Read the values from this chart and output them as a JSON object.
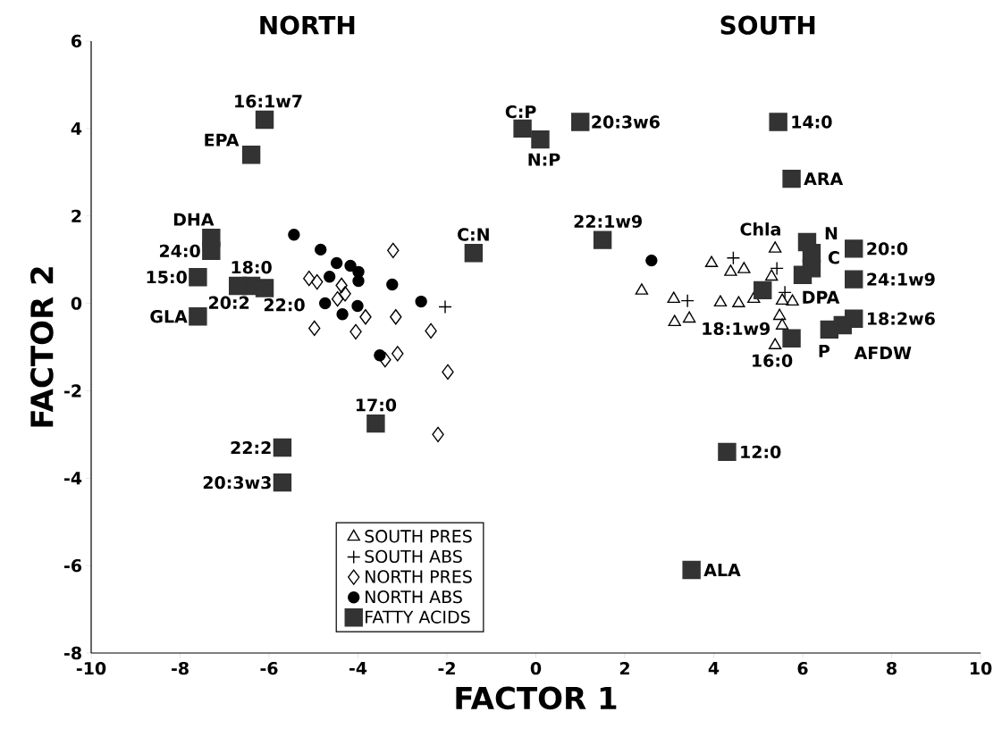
{
  "chart_data": {
    "type": "scatter",
    "xlabel": "FACTOR 1",
    "ylabel": "FACTOR 2",
    "xlim": [
      -10,
      10
    ],
    "ylim": [
      -8,
      6
    ],
    "xticks": [
      -10,
      -8,
      -6,
      -4,
      -2,
      0,
      2,
      4,
      6,
      8,
      10
    ],
    "yticks": [
      -8,
      -6,
      -4,
      -2,
      0,
      2,
      4,
      6
    ],
    "grid": false,
    "legend": "bottom",
    "series": [
      {
        "name": "SOUTH PRES",
        "color": "#000000",
        "marker": "triangle",
        "x": [
          2.38,
          3.1,
          3.12,
          3.45,
          3.95,
          4.38,
          4.68,
          4.15,
          4.56,
          4.9,
          5.38,
          5.3,
          5.54,
          5.77,
          5.48,
          5.54,
          5.38
        ],
        "values": [
          0.29,
          0.1,
          -0.43,
          -0.35,
          0.92,
          0.72,
          0.78,
          0.02,
          0.0,
          0.1,
          1.25,
          0.61,
          0.06,
          0.04,
          -0.29,
          -0.51,
          -0.96
        ]
      },
      {
        "name": "SOUTH ABS",
        "color": "#000000",
        "marker": "cross",
        "x": [
          -2.04,
          4.44,
          5.42,
          3.41,
          5.6
        ],
        "values": [
          -0.08,
          1.04,
          0.8,
          0.06,
          0.25
        ]
      },
      {
        "name": "NORTH PRES",
        "color": "#000000",
        "marker": "diamond",
        "x": [
          -3.21,
          -5.1,
          -4.92,
          -4.37,
          -4.29,
          -4.46,
          -3.83,
          -4.05,
          -4.98,
          -3.15,
          -2.36,
          -3.11,
          -3.39,
          -1.98,
          -2.2
        ],
        "values": [
          1.21,
          0.57,
          0.49,
          0.41,
          0.22,
          0.1,
          -0.31,
          -0.65,
          -0.57,
          -0.31,
          -0.63,
          -1.15,
          -1.29,
          -1.57,
          -3.0
        ]
      },
      {
        "name": "NORTH ABS",
        "color": "#000000",
        "marker": "circle",
        "x": [
          -5.44,
          -4.84,
          -4.48,
          -4.17,
          -3.99,
          -3.99,
          -4.64,
          -4.74,
          -4.35,
          -4.01,
          -3.23,
          -2.58,
          -3.51,
          2.6
        ],
        "values": [
          1.57,
          1.23,
          0.92,
          0.86,
          0.72,
          0.51,
          0.61,
          0.0,
          -0.25,
          -0.06,
          0.43,
          0.04,
          -1.19,
          0.98
        ]
      },
      {
        "name": "FATTY ACIDS",
        "color": "#333333",
        "marker": "square",
        "x": [
          -6.1,
          -6.4,
          -7.3,
          -7.3,
          -7.6,
          -7.6,
          -6.4,
          -6.7,
          -6.1,
          -1.4,
          -3.6,
          -5.7,
          -5.7,
          -0.3,
          0.1,
          1.0,
          5.45,
          5.75,
          1.5,
          4.3,
          3.5,
          6.2,
          6.1,
          6.2,
          6.0,
          7.15,
          7.15,
          6.9,
          6.6,
          5.1,
          5.75,
          7.15
        ],
        "values": [
          4.2,
          3.4,
          1.5,
          1.2,
          0.6,
          -0.3,
          0.4,
          0.4,
          0.35,
          1.15,
          -2.75,
          -3.3,
          -4.1,
          4.0,
          3.75,
          4.15,
          4.15,
          2.85,
          1.45,
          -3.4,
          -6.1,
          0.8,
          1.4,
          1.15,
          0.65,
          0.55,
          -0.35,
          -0.5,
          -0.6,
          0.3,
          -0.8,
          1.25
        ]
      }
    ],
    "annotations": [
      "NORTH",
      "SOUTH",
      {
        "text": "16:1w7",
        "x": -6.1,
        "y": 4.2
      },
      {
        "text": "EPA",
        "x": -6.4,
        "y": 3.4
      },
      {
        "text": "DHA",
        "x": -7.3,
        "y": 1.5
      },
      {
        "text": "24:0",
        "x": -7.3,
        "y": 1.2
      },
      {
        "text": "15:0",
        "x": -7.6,
        "y": 0.6
      },
      {
        "text": "GLA",
        "x": -7.6,
        "y": -0.3
      },
      {
        "text": "18:0",
        "x": -6.4,
        "y": 0.4
      },
      {
        "text": "20:2",
        "x": -6.7,
        "y": 0.4
      },
      {
        "text": "22:0",
        "x": -6.1,
        "y": 0.35
      },
      {
        "text": "C:N",
        "x": -1.4,
        "y": 1.15
      },
      {
        "text": "17:0",
        "x": -3.6,
        "y": -2.75
      },
      {
        "text": "22:2",
        "x": -5.7,
        "y": -3.3
      },
      {
        "text": "20:3w3",
        "x": -5.7,
        "y": -4.1
      },
      {
        "text": "C:P",
        "x": -0.3,
        "y": 4.0
      },
      {
        "text": "N:P",
        "x": 0.1,
        "y": 3.75
      },
      {
        "text": "20:3w6",
        "x": 1.0,
        "y": 4.15
      },
      {
        "text": "14:0",
        "x": 5.45,
        "y": 4.15
      },
      {
        "text": "ARA",
        "x": 5.75,
        "y": 2.85
      },
      {
        "text": "22:1w9",
        "x": 1.5,
        "y": 1.45
      },
      {
        "text": "12:0",
        "x": 4.3,
        "y": -3.4
      },
      {
        "text": "ALA",
        "x": 3.5,
        "y": -6.1
      },
      {
        "text": "Chla",
        "x": 6.2,
        "y": 0.8
      },
      {
        "text": "N",
        "x": 6.1,
        "y": 1.4
      },
      {
        "text": "C",
        "x": 6.2,
        "y": 1.15
      },
      {
        "text": "DPA",
        "x": 6.0,
        "y": 0.65
      },
      {
        "text": "24:1w9",
        "x": 7.15,
        "y": 0.55
      },
      {
        "text": "18:2w6",
        "x": 7.15,
        "y": -0.35
      },
      {
        "text": "AFDW",
        "x": 6.9,
        "y": -0.5
      },
      {
        "text": "P",
        "x": 6.6,
        "y": -0.6
      },
      {
        "text": "18:1w9",
        "x": 5.1,
        "y": 0.3
      },
      {
        "text": "16:0",
        "x": 5.75,
        "y": -0.8
      },
      {
        "text": "20:0",
        "x": 7.15,
        "y": 1.25
      }
    ]
  }
}
